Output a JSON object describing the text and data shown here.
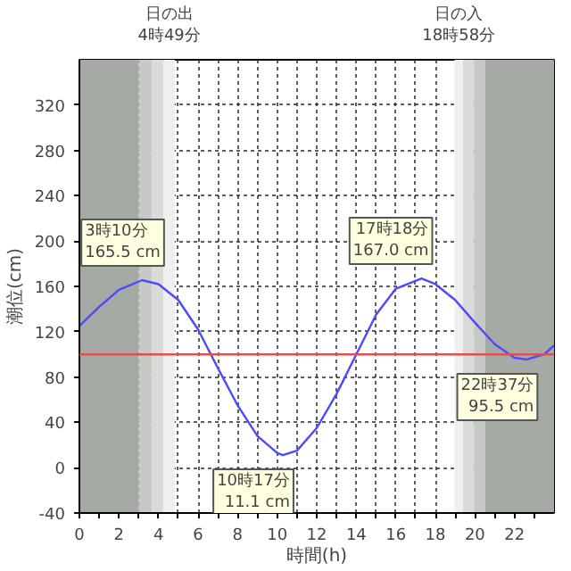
{
  "chart_data": {
    "type": "line",
    "xlabel": "時間(h)",
    "ylabel": "潮位(cm)",
    "x": [
      0,
      1,
      2,
      3.167,
      4,
      5,
      6,
      7,
      8,
      9,
      10,
      10.283,
      11,
      12,
      13,
      14,
      15,
      16,
      17.3,
      18,
      19,
      20,
      21,
      22,
      22.617,
      23.5,
      24
    ],
    "series": [
      {
        "color": "#4a4aff",
        "values": [
          125,
          142,
          157,
          165.5,
          162,
          148,
          122,
          88,
          55,
          28,
          13,
          11.1,
          15,
          35,
          65,
          100,
          135,
          158,
          167,
          162,
          148,
          128,
          109,
          97,
          95.5,
          100,
          108
        ]
      }
    ],
    "xlim": [
      0,
      24
    ],
    "ylim": [
      -40,
      360
    ],
    "xticks": [
      0,
      {
        "value": 1,
        "label": null
      },
      2,
      {
        "value": 3,
        "label": null
      },
      4,
      {
        "value": 5,
        "label": null
      },
      6,
      {
        "value": 7,
        "label": null
      },
      8,
      {
        "value": 9,
        "label": null
      },
      10,
      {
        "value": 11,
        "label": null
      },
      12,
      {
        "value": 13,
        "label": null
      },
      14,
      {
        "value": 15,
        "label": null
      },
      16,
      {
        "value": 17,
        "label": null
      },
      18,
      {
        "value": 19,
        "label": null
      },
      20,
      {
        "value": 21,
        "label": null
      },
      22,
      {
        "value": 23,
        "label": null
      }
    ],
    "yticks": [
      -40,
      0,
      40,
      80,
      120,
      160,
      200,
      240,
      280,
      320
    ],
    "grid": true,
    "line_style": "solid",
    "marker": "none",
    "ref_lines": [
      {
        "axis": "y",
        "value": 100,
        "color": "#e05050",
        "line_style": "solid"
      }
    ],
    "bands": [
      {
        "axis": "x",
        "from": 0,
        "to": 3.0,
        "color": "#a6aaa5"
      },
      {
        "axis": "x",
        "from": 3.0,
        "to": 3.65,
        "color": "#c6c9c5"
      },
      {
        "axis": "x",
        "from": 3.65,
        "to": 4.26,
        "color": "#d9dbd8"
      },
      {
        "axis": "x",
        "from": 4.26,
        "to": 4.82,
        "color": "#efefef",
        "label": "日の出\n4時49分"
      },
      {
        "axis": "x",
        "from": 18.97,
        "to": 19.4,
        "color": "#efefef",
        "label": "日の入\n18時58分"
      },
      {
        "axis": "x",
        "from": 19.4,
        "to": 19.95,
        "color": "#d9dbd8"
      },
      {
        "axis": "x",
        "from": 19.95,
        "to": 20.52,
        "color": "#c6c9c5"
      },
      {
        "axis": "x",
        "from": 20.52,
        "to": 24,
        "color": "#a6aaa5"
      }
    ],
    "annotations": [
      {
        "text": "3時10分\n165.5 cm",
        "x": 3.167,
        "y": 165.5
      },
      {
        "text": "10時17分\n11.1 cm",
        "x": 10.283,
        "y": 11.1
      },
      {
        "text": "17時18分\n167.0 cm",
        "x": 17.3,
        "y": 167.0
      },
      {
        "text": "22時37分\n95.5 cm",
        "x": 22.617,
        "y": 95.5
      }
    ]
  }
}
